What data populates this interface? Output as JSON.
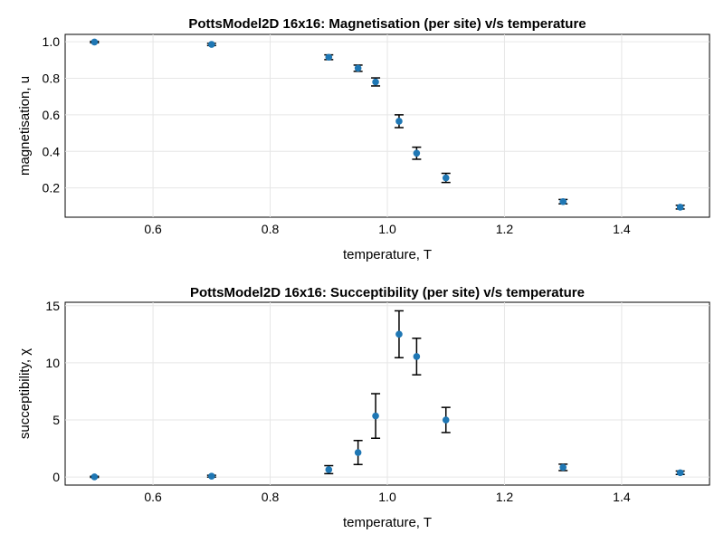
{
  "chart_data": [
    {
      "type": "scatter",
      "title": "PottsModel2D 16x16: Magnetisation (per site) v/s temperature",
      "xlabel": "temperature, T",
      "ylabel": "magnetisation, u",
      "xlim": [
        0.45,
        1.55
      ],
      "ylim": [
        0.04,
        1.04
      ],
      "xticks": [
        0.6,
        0.8,
        1.0,
        1.2,
        1.4
      ],
      "xtick_labels": [
        "0.6",
        "0.8",
        "1.0",
        "1.2",
        "1.4"
      ],
      "yticks": [
        0.2,
        0.4,
        0.6,
        0.8,
        1.0
      ],
      "ytick_labels": [
        "0.2",
        "0.4",
        "0.6",
        "0.8",
        "1.0"
      ],
      "grid": true,
      "marker_color": "#1f77b4",
      "x": [
        0.5,
        0.7,
        0.9,
        0.95,
        0.98,
        1.02,
        1.05,
        1.1,
        1.3,
        1.5
      ],
      "y": [
        0.998,
        0.985,
        0.915,
        0.855,
        0.78,
        0.565,
        0.39,
        0.255,
        0.125,
        0.095
      ],
      "yerr": [
        0.004,
        0.006,
        0.013,
        0.017,
        0.022,
        0.035,
        0.033,
        0.025,
        0.012,
        0.01
      ]
    },
    {
      "type": "scatter",
      "title": "PottsModel2D 16x16: Succeptibility (per site) v/s temperature",
      "xlabel": "temperature, T",
      "ylabel": "succeptibility, χ",
      "xlim": [
        0.45,
        1.55
      ],
      "ylim": [
        -0.7,
        15.3
      ],
      "xticks": [
        0.6,
        0.8,
        1.0,
        1.2,
        1.4
      ],
      "xtick_labels": [
        "0.6",
        "0.8",
        "1.0",
        "1.2",
        "1.4"
      ],
      "yticks": [
        0,
        5,
        10,
        15
      ],
      "ytick_labels": [
        "0",
        "5",
        "10",
        "15"
      ],
      "grid": true,
      "marker_color": "#1f77b4",
      "x": [
        0.5,
        0.7,
        0.9,
        0.95,
        0.98,
        1.02,
        1.05,
        1.1,
        1.3,
        1.5
      ],
      "y": [
        0.02,
        0.08,
        0.65,
        2.15,
        5.35,
        12.5,
        10.55,
        5.0,
        0.85,
        0.38
      ],
      "yerr": [
        0.05,
        0.08,
        0.35,
        1.05,
        1.95,
        2.05,
        1.6,
        1.1,
        0.28,
        0.15
      ]
    }
  ]
}
